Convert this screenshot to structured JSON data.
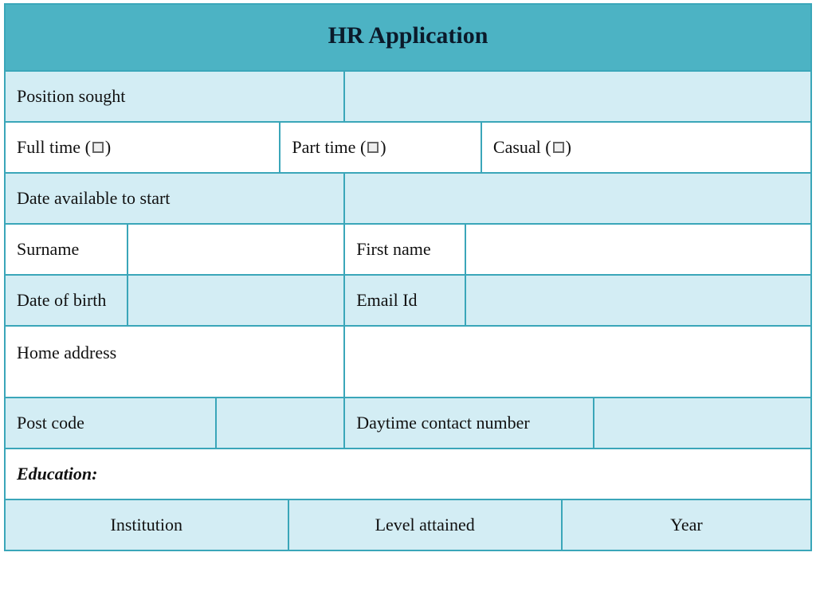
{
  "colors": {
    "border": "#3aa6b9",
    "header_bg": "#4cb3c4",
    "light_bg": "#d3edf4",
    "white_bg": "#ffffff",
    "text": "#111111"
  },
  "title": "HR Application",
  "fields": {
    "position_sought": "Position sought",
    "full_time": "Full time",
    "part_time": "Part time",
    "casual": "Casual",
    "date_available": "Date available to start",
    "surname": "Surname",
    "first_name": "First name",
    "dob": "Date of birth",
    "email": "Email Id",
    "home_address": "Home address",
    "post_code": "Post code",
    "daytime_contact": "Daytime contact number",
    "education_section": "Education:",
    "institution": "Institution",
    "level_attained": "Level attained",
    "year": "Year"
  },
  "layout": {
    "row_position": [
      "42%",
      "58%"
    ],
    "row_emptype": [
      "34%",
      "25%",
      "41%"
    ],
    "row_dateavail": [
      "42%",
      "58%"
    ],
    "row_name": [
      "15%",
      "27%",
      "15%",
      "43%"
    ],
    "row_dob": [
      "15%",
      "27%",
      "15%",
      "43%"
    ],
    "row_addr": [
      "42%",
      "58%"
    ],
    "row_post": [
      "26%",
      "16%",
      "31%",
      "27%"
    ],
    "row_section": [
      "100%"
    ],
    "row_eduhead": [
      "35%",
      "34%",
      "31%"
    ]
  }
}
